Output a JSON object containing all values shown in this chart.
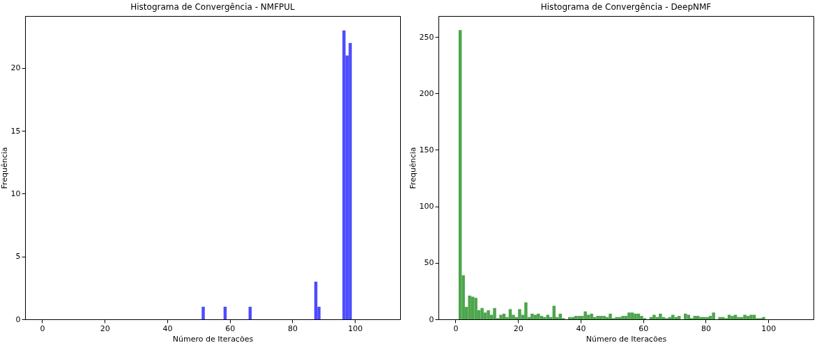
{
  "chart_data": [
    {
      "type": "histogram",
      "title": "Histograma de Convergência - NMFPUL",
      "xlabel": "Número de Iterações",
      "ylabel": "Frequência",
      "color": "#4c4cff",
      "bins": [
        1,
        2,
        3,
        4,
        5,
        6,
        7,
        8,
        9,
        10,
        11,
        12,
        13,
        14,
        15,
        16,
        17,
        18,
        19,
        20,
        21,
        22,
        23,
        24,
        25,
        26,
        27,
        28,
        29,
        30,
        31,
        32,
        33,
        34,
        35,
        36,
        37,
        38,
        39,
        40,
        41,
        42,
        43,
        44,
        45,
        46,
        47,
        48,
        49,
        50,
        51,
        52,
        53,
        54,
        55,
        56,
        57,
        58,
        59,
        60,
        61,
        62,
        63,
        64,
        65,
        66,
        67,
        68,
        69,
        70,
        71,
        72,
        73,
        74,
        75,
        76,
        77,
        78,
        79,
        80,
        81,
        82,
        83,
        84,
        85,
        86,
        87,
        88,
        89,
        90,
        91,
        92,
        93,
        94,
        95,
        96,
        97,
        98,
        99,
        100
      ],
      "values": [
        0,
        0,
        0,
        0,
        0,
        0,
        0,
        0,
        0,
        0,
        0,
        0,
        0,
        0,
        0,
        0,
        0,
        0,
        0,
        0,
        0,
        0,
        0,
        0,
        0,
        0,
        0,
        0,
        0,
        0,
        0,
        0,
        0,
        0,
        0,
        0,
        0,
        0,
        0,
        0,
        0,
        0,
        0,
        0,
        0,
        0,
        0,
        0,
        0,
        0,
        1,
        0,
        0,
        0,
        0,
        0,
        0,
        1,
        0,
        0,
        0,
        0,
        0,
        0,
        0,
        1,
        0,
        0,
        0,
        0,
        0,
        0,
        0,
        0,
        0,
        0,
        0,
        0,
        0,
        0,
        0,
        0,
        0,
        0,
        0,
        0,
        3,
        1,
        0,
        0,
        0,
        0,
        0,
        0,
        0,
        23,
        21,
        22,
        0
      ],
      "xlim": [
        -5.45,
        114.45
      ],
      "xticks": [
        0,
        20,
        40,
        60,
        80,
        100
      ],
      "ylim": [
        0,
        24.15
      ],
      "yticks": [
        0,
        5,
        10,
        15,
        20
      ]
    },
    {
      "type": "histogram",
      "title": "Histograma de Convergência - DeepNMF",
      "xlabel": "Número de Iterações",
      "ylabel": "Frequência",
      "color": "#4ca64c",
      "bins": [
        1,
        2,
        3,
        4,
        5,
        6,
        7,
        8,
        9,
        10,
        11,
        12,
        13,
        14,
        15,
        16,
        17,
        18,
        19,
        20,
        21,
        22,
        23,
        24,
        25,
        26,
        27,
        28,
        29,
        30,
        31,
        32,
        33,
        34,
        35,
        36,
        37,
        38,
        39,
        40,
        41,
        42,
        43,
        44,
        45,
        46,
        47,
        48,
        49,
        50,
        51,
        52,
        53,
        54,
        55,
        56,
        57,
        58,
        59,
        60,
        61,
        62,
        63,
        64,
        65,
        66,
        67,
        68,
        69,
        70,
        71,
        72,
        73,
        74,
        75,
        76,
        77,
        78,
        79,
        80,
        81,
        82,
        83,
        84,
        85,
        86,
        87,
        88,
        89,
        90,
        91,
        92,
        93,
        94,
        95,
        96,
        97,
        98,
        99,
        100
      ],
      "values": [
        256,
        39,
        11,
        21,
        20,
        19,
        8,
        10,
        6,
        8,
        4,
        10,
        1,
        4,
        5,
        2,
        9,
        4,
        2,
        9,
        4,
        15,
        2,
        5,
        4,
        5,
        3,
        2,
        4,
        2,
        12,
        2,
        5,
        1,
        0,
        2,
        2,
        3,
        3,
        3,
        7,
        4,
        5,
        2,
        3,
        3,
        3,
        2,
        5,
        1,
        2,
        2,
        3,
        3,
        6,
        6,
        5,
        5,
        3,
        1,
        0,
        2,
        4,
        2,
        5,
        2,
        1,
        2,
        4,
        2,
        3,
        0,
        5,
        4,
        1,
        3,
        3,
        2,
        2,
        2,
        3,
        6,
        0,
        2,
        2,
        1,
        4,
        3,
        4,
        2,
        2,
        4,
        3,
        4,
        4,
        1,
        1,
        2,
        0
      ],
      "xlim": [
        -5.45,
        114.45
      ],
      "xticks": [
        0,
        20,
        40,
        60,
        80,
        100
      ],
      "ylim": [
        0,
        268.5
      ],
      "yticks": [
        0,
        50,
        100,
        150,
        200,
        250
      ]
    }
  ]
}
